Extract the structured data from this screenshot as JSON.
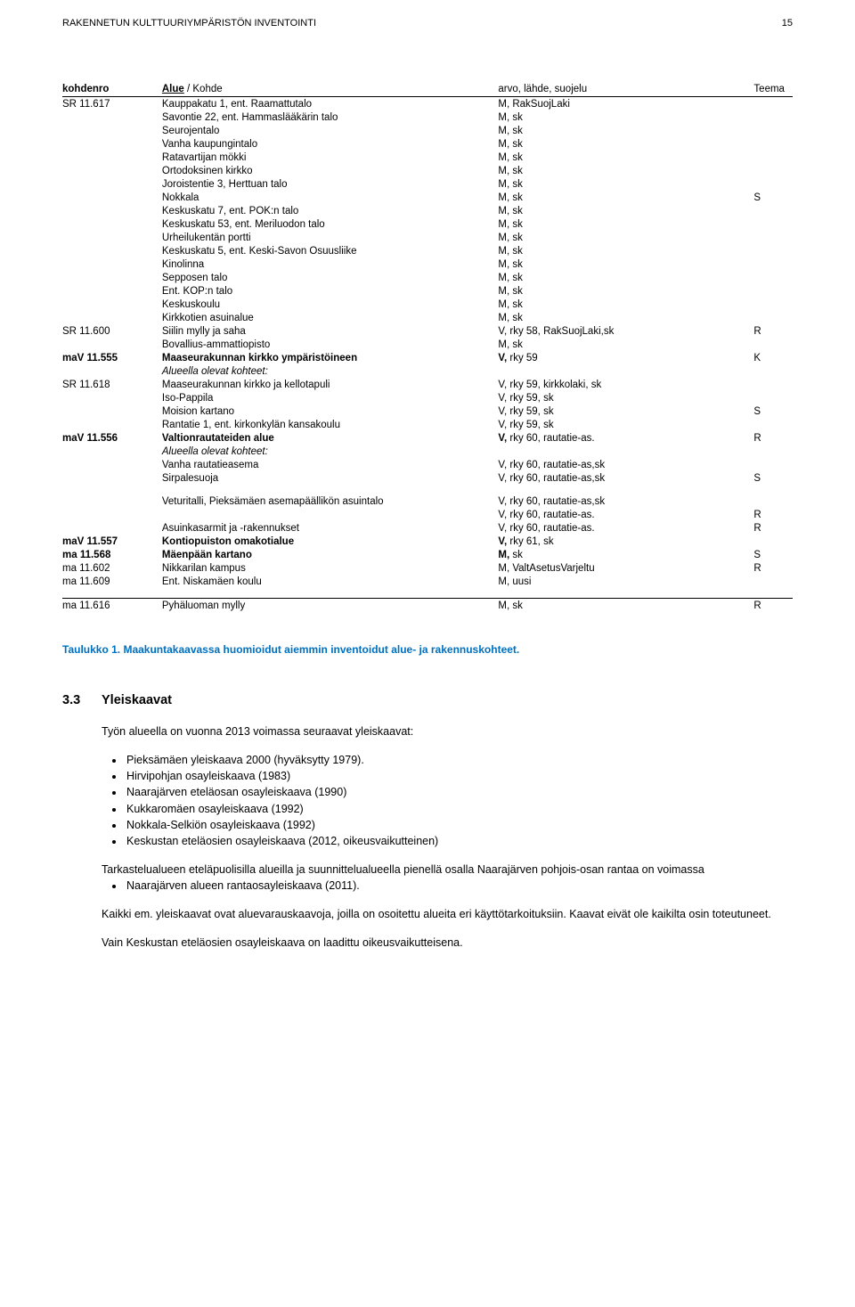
{
  "header": {
    "title": "RAKENNETUN KULTTUURIYMPÄRISTÖN INVENTOINTI",
    "page": "15"
  },
  "tableHeader": {
    "c1": "kohdenro",
    "c2a": "Alue",
    "c2b": " / Kohde",
    "c3": "arvo, lähde, suojelu",
    "c4": "Teema"
  },
  "rows": [
    {
      "c1": "SR 11.617",
      "c2": "Kauppakatu 1, ent. Raamattutalo",
      "c3": "M, RakSuojLaki"
    },
    {
      "c2": "Savontie 22, ent. Hammaslääkärin talo",
      "c3": "M, sk"
    },
    {
      "c2": "Seurojentalo",
      "c3": "M, sk"
    },
    {
      "c2": "Vanha kaupungintalo",
      "c3": "M, sk"
    },
    {
      "c2": "Ratavartijan mökki",
      "c3": "M, sk"
    },
    {
      "c2": "Ortodoksinen kirkko",
      "c3": "M, sk"
    },
    {
      "c2": "Joroistentie 3, Herttuan talo",
      "c3": "M, sk"
    },
    {
      "c2": "Nokkala",
      "c3": "M, sk",
      "c4": "S"
    },
    {
      "c2": "Keskuskatu 7, ent. POK:n talo",
      "c3": "M, sk"
    },
    {
      "c2": "Keskuskatu 53, ent. Meriluodon talo",
      "c3": "M, sk"
    },
    {
      "c2": "Urheilukentän portti",
      "c3": "M, sk"
    },
    {
      "c2": "Keskuskatu 5, ent. Keski-Savon Osuusliike",
      "c3": "M, sk"
    },
    {
      "c2": "Kinolinna",
      "c3": "M, sk"
    },
    {
      "c2": "Sepposen talo",
      "c3": "M, sk"
    },
    {
      "c2": "Ent. KOP:n talo",
      "c3": "M, sk"
    },
    {
      "c2": "Keskuskoulu",
      "c3": "M, sk"
    },
    {
      "c2": "Kirkkotien asuinalue",
      "c3": "M, sk"
    },
    {
      "c1": "SR 11.600",
      "c2": "Siilin mylly ja saha",
      "c3": "V, rky 58, RakSuojLaki,sk",
      "c4": "R"
    },
    {
      "c2": "Bovallius-ammattiopisto",
      "c3": "M, sk"
    },
    {
      "c1": "maV 11.555",
      "c1b": true,
      "c2": "Maaseurakunnan kirkko ympäristöineen",
      "c2b": true,
      "c3": "V,",
      "c3b": true,
      "c3r": " rky 59",
      "c4": "K"
    },
    {
      "c2": "Alueella olevat kohteet:",
      "c2i": true
    },
    {
      "c1": "SR 11.618",
      "c2": "Maaseurakunnan kirkko ja kellotapuli",
      "c3": "V, rky 59, kirkkolaki, sk"
    },
    {
      "c2": "Iso-Pappila",
      "c3": "V, rky 59, sk"
    },
    {
      "c2": "Moision kartano",
      "c3": "V, rky 59, sk",
      "c4": "S"
    },
    {
      "c2": "Rantatie 1, ent. kirkonkylän kansakoulu",
      "c3": "V, rky 59, sk"
    },
    {
      "c1": "maV 11.556",
      "c1b": true,
      "c2": "Valtionrautateiden alue",
      "c2b": true,
      "c3": "V,",
      "c3b": true,
      "c3r": " rky 60, rautatie-as.",
      "c4": "R"
    },
    {
      "c2": "Alueella olevat kohteet:",
      "c2i": true
    },
    {
      "c2": "Vanha rautatieasema",
      "c3": "V, rky 60, rautatie-as,sk"
    },
    {
      "c2": "Sirpalesuoja",
      "c3": "V, rky 60, rautatie-as,sk",
      "c4": "S"
    },
    {
      "gap": true
    },
    {
      "c2": "Veturitalli, Pieksämäen asemapäällikön asuintalo",
      "c3": "V, rky 60, rautatie-as,sk"
    },
    {
      "c3": "V, rky 60, rautatie-as.",
      "c4": "R"
    },
    {
      "c2": "Asuinkasarmit ja -rakennukset",
      "c3": "V, rky 60, rautatie-as.",
      "c4": "R"
    },
    {
      "c1": "maV 11.557",
      "c1b": true,
      "c2": "Kontiopuiston omakotialue",
      "c2b": true,
      "c3": "V,",
      "c3b": true,
      "c3r": " rky 61, sk"
    },
    {
      "c1": "ma 11.568",
      "c1b": true,
      "c2": "Mäenpään kartano",
      "c2b": true,
      "c3": "M,",
      "c3b": true,
      "c3r": " sk",
      "c4": "S"
    },
    {
      "c1": "ma 11.602",
      "c2": "Nikkarilan kampus",
      "c3": "M, ValtAsetusVarjeltu",
      "c4": "R"
    },
    {
      "c1": "ma 11.609",
      "c2": "Ent. Niskamäen koulu",
      "c3": "M, uusi"
    },
    {
      "gap": true
    },
    {
      "c1": "ma 11.616",
      "c2": "Pyhäluoman mylly",
      "c3": "M, sk",
      "c4": "R",
      "bottom": true
    }
  ],
  "caption": "Taulukko 1. Maakuntakaavassa huomioidut aiemmin inventoidut alue- ja rakennuskohteet.",
  "section": {
    "num": "3.3",
    "title": "Yleiskaavat"
  },
  "body": {
    "p1": "Työn alueella on vuonna 2013 voimassa seuraavat yleiskaavat:",
    "bullets1": [
      "Pieksämäen yleiskaava 2000 (hyväksytty 1979).",
      "Hirvipohjan osayleiskaava (1983)",
      "Naarajärven eteläosan osayleiskaava (1990)",
      "Kukkaromäen osayleiskaava (1992)",
      "Nokkala-Selkiön osayleiskaava (1992)",
      "Keskustan eteläosien osayleiskaava (2012, oikeusvaikutteinen)"
    ],
    "p2": "Tarkastelualueen eteläpuolisilla alueilla ja suunnittelualueella pienellä osalla Naarajärven pohjois-osan rantaa on voimassa",
    "bullets2": [
      "Naarajärven alueen rantaosayleiskaava (2011)."
    ],
    "p3": "Kaikki em. yleiskaavat ovat aluevarauskaavoja, joilla on osoitettu alueita eri käyttötarkoituksiin. Kaavat eivät ole kaikilta osin toteutuneet.",
    "p4": "Vain Keskustan eteläosien osayleiskaava on laadittu oikeusvaikutteisena."
  },
  "colors": {
    "text": "#000000",
    "caption": "#0070c0",
    "background": "#ffffff"
  }
}
